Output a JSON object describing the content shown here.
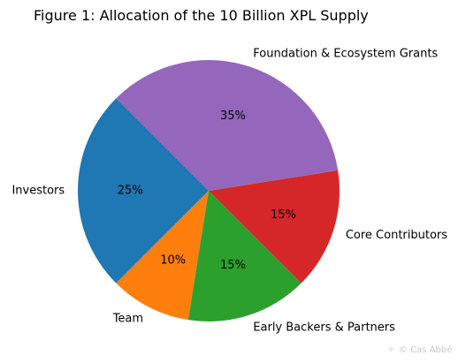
{
  "chart_data": {
    "type": "pie",
    "title": "Figure 1: Allocation of the 10 Billion XPL Supply",
    "slices": [
      {
        "label": "Investors",
        "value": 25,
        "display": "25%",
        "color": "#1f77b4"
      },
      {
        "label": "Team",
        "value": 10,
        "display": "10%",
        "color": "#ff7f0e"
      },
      {
        "label": "Early Backers & Partners",
        "value": 15,
        "display": "15%",
        "color": "#2ca02c"
      },
      {
        "label": "Core Contributors",
        "value": 15,
        "display": "15%",
        "color": "#d62728"
      },
      {
        "label": "Foundation & Ecosystem Grants",
        "value": 35,
        "display": "35%",
        "color": "#9467bd"
      }
    ],
    "start_angle_deg": 135,
    "direction": "counterclockwise"
  },
  "watermark": "© Cas Abbé"
}
